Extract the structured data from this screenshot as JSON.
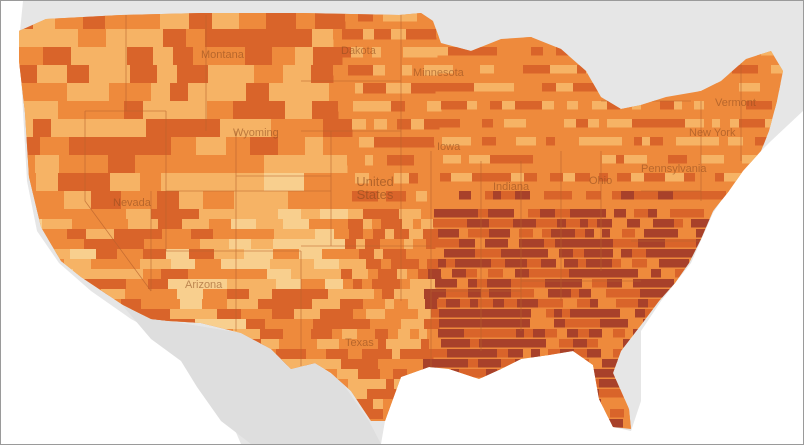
{
  "map": {
    "country_label": "United States",
    "state_labels": [
      "Dakota",
      "Montana",
      "Minnesota",
      "Wyoming",
      "Nevada",
      "Arizona",
      "Iowa",
      "Indiana",
      "Ohio",
      "New York",
      "Vermont",
      "Pennsylvania",
      "Texas"
    ],
    "colors": {
      "background": "#dcdcdc",
      "land_outside": "#e9e9e9",
      "water": "#ffffff",
      "choropleth_low": "#f8cf8e",
      "choropleth_light": "#f6b365",
      "choropleth_mid": "#ee8a3c",
      "choropleth_high": "#d9642a",
      "choropleth_highest": "#a8412a",
      "state_border": "#b8622d"
    }
  }
}
